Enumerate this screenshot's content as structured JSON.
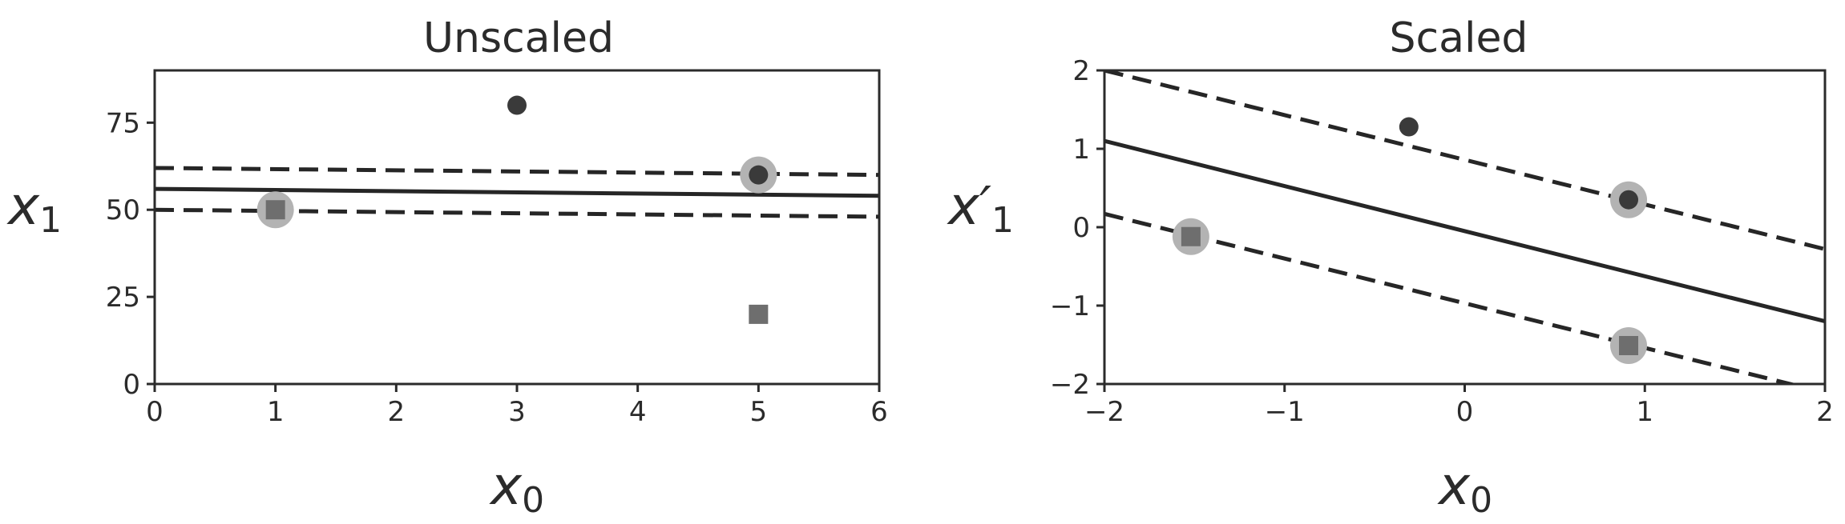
{
  "chart_data": [
    {
      "type": "scatter",
      "title": "Unscaled",
      "xlabel": "x0",
      "xlabel_main": "x",
      "xlabel_sub": "0",
      "ylabel": "x1",
      "ylabel_main": "x",
      "ylabel_sub": "1",
      "xlim": [
        0,
        6
      ],
      "ylim": [
        0,
        90
      ],
      "xticks": [
        0,
        1,
        2,
        3,
        4,
        5,
        6
      ],
      "xtick_labels": [
        "0",
        "1",
        "2",
        "3",
        "4",
        "5",
        "6"
      ],
      "yticks": [
        0,
        25,
        50,
        75
      ],
      "ytick_labels": [
        "0",
        "25",
        "50",
        "75"
      ],
      "grid": false,
      "series": [
        {
          "marker": "circle",
          "color": "#3a3a3a",
          "points": [
            [
              3,
              80
            ],
            [
              5,
              60
            ]
          ]
        },
        {
          "marker": "square",
          "color": "#6e6e6e",
          "points": [
            [
              1,
              50
            ],
            [
              5,
              20
            ]
          ]
        }
      ],
      "support_vectors": [
        [
          1,
          50
        ],
        [
          5,
          60
        ]
      ],
      "lines": [
        {
          "style": "solid",
          "points": [
            [
              0,
              56
            ],
            [
              6,
              54
            ]
          ]
        },
        {
          "style": "dashed",
          "points": [
            [
              0,
              62
            ],
            [
              6,
              60
            ]
          ]
        },
        {
          "style": "dashed",
          "points": [
            [
              0,
              50
            ],
            [
              6,
              48
            ]
          ]
        }
      ]
    },
    {
      "type": "scatter",
      "title": "Scaled",
      "xlabel": "x0",
      "xlabel_main": "x",
      "xlabel_sub": "0",
      "ylabel": "x′1",
      "ylabel_main": "x′",
      "ylabel_sub": "1",
      "xlim": [
        -2,
        2
      ],
      "ylim": [
        -2,
        2
      ],
      "xticks": [
        -2,
        -1,
        0,
        1,
        2
      ],
      "xtick_labels": [
        "−2",
        "−1",
        "0",
        "1",
        "2"
      ],
      "yticks": [
        -2,
        -1,
        0,
        1,
        2
      ],
      "ytick_labels": [
        "−2",
        "−1",
        "0",
        "1",
        "2"
      ],
      "grid": false,
      "series": [
        {
          "marker": "circle",
          "color": "#3a3a3a",
          "points": [
            [
              -0.31,
              1.28
            ],
            [
              0.91,
              0.35
            ]
          ]
        },
        {
          "marker": "square",
          "color": "#6e6e6e",
          "points": [
            [
              -1.52,
              -0.12
            ],
            [
              0.91,
              -1.51
            ]
          ]
        }
      ],
      "support_vectors": [
        [
          -1.52,
          -0.12
        ],
        [
          0.91,
          0.35
        ],
        [
          0.91,
          -1.51
        ]
      ],
      "lines": [
        {
          "style": "solid",
          "points": [
            [
              -2,
              1.1
            ],
            [
              2,
              -1.2
            ]
          ]
        },
        {
          "style": "dashed",
          "points": [
            [
              -2,
              2.0
            ],
            [
              2,
              -0.28
            ]
          ]
        },
        {
          "style": "dashed",
          "points": [
            [
              -2,
              0.17
            ],
            [
              2,
              -2.11
            ]
          ]
        }
      ]
    }
  ]
}
